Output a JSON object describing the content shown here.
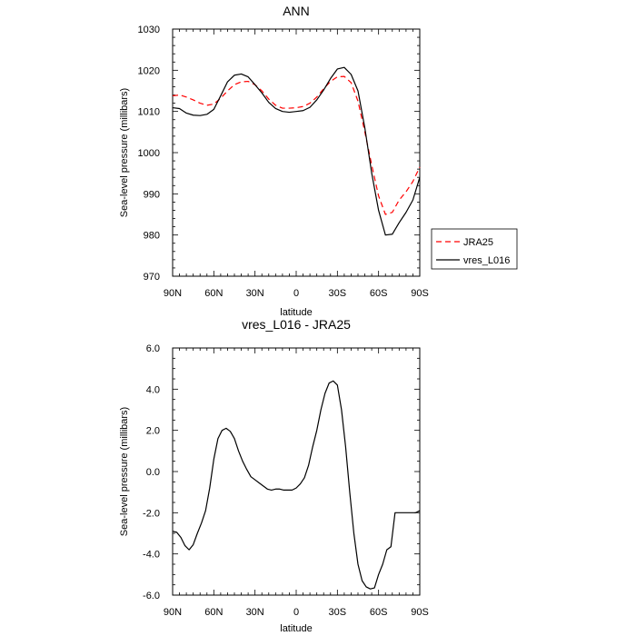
{
  "chart_data": [
    {
      "type": "line",
      "title": "ANN",
      "xlabel": "latitude",
      "ylabel": "Sea-level pressure (millibars)",
      "xticks": [
        "90N",
        "60N",
        "30N",
        "0",
        "30S",
        "60S",
        "90S"
      ],
      "xtick_values": [
        90,
        60,
        30,
        0,
        -30,
        -60,
        -90
      ],
      "yticks": [
        "970",
        "980",
        "990",
        "1000",
        "1010",
        "1020",
        "1030"
      ],
      "ytick_values": [
        970,
        980,
        990,
        1000,
        1010,
        1020,
        1030
      ],
      "xlim": [
        90,
        -90
      ],
      "ylim": [
        970,
        1030
      ],
      "legend_position": "right",
      "series": [
        {
          "name": "JRA25",
          "color": "#ff0000",
          "dash": "dashed",
          "x": [
            90,
            85,
            80,
            75,
            70,
            65,
            60,
            55,
            50,
            45,
            40,
            35,
            30,
            25,
            20,
            15,
            10,
            5,
            0,
            -5,
            -10,
            -15,
            -20,
            -25,
            -30,
            -35,
            -40,
            -45,
            -50,
            -55,
            -60,
            -65,
            -70,
            -75,
            -80,
            -85,
            -90
          ],
          "y": [
            1013.8,
            1014.0,
            1013.5,
            1012.8,
            1012.0,
            1011.5,
            1011.8,
            1013.2,
            1015.0,
            1016.5,
            1017.2,
            1017.3,
            1016.5,
            1015.0,
            1013.0,
            1011.5,
            1010.8,
            1010.8,
            1010.9,
            1011.2,
            1012.0,
            1013.5,
            1015.5,
            1017.3,
            1018.4,
            1018.5,
            1017.0,
            1012.5,
            1005.0,
            997.0,
            989.5,
            985.0,
            985.5,
            988.5,
            990.5,
            993.0,
            996.5
          ]
        },
        {
          "name": "vres_L016",
          "color": "#000000",
          "dash": "solid",
          "x": [
            90,
            85,
            80,
            75,
            70,
            65,
            60,
            55,
            50,
            45,
            40,
            35,
            30,
            25,
            20,
            15,
            10,
            5,
            0,
            -5,
            -10,
            -15,
            -20,
            -25,
            -30,
            -35,
            -40,
            -45,
            -50,
            -55,
            -60,
            -65,
            -70,
            -75,
            -80,
            -85,
            -90
          ],
          "y": [
            1010.9,
            1010.7,
            1009.6,
            1009.1,
            1009.0,
            1009.3,
            1010.5,
            1013.8,
            1017.2,
            1018.8,
            1019.1,
            1018.4,
            1016.5,
            1014.5,
            1012.2,
            1010.7,
            1010.0,
            1009.8,
            1010.0,
            1010.2,
            1011.0,
            1012.8,
            1015.2,
            1018.0,
            1020.3,
            1020.7,
            1019.0,
            1015.0,
            1006.0,
            995.0,
            986.0,
            980.0,
            980.2,
            983.0,
            985.5,
            988.5,
            994.0
          ]
        }
      ]
    },
    {
      "type": "line",
      "title": "vres_L016 - JRA25",
      "xlabel": "latitude",
      "ylabel": "Sea-level pressure (millibars)",
      "xticks": [
        "90N",
        "60N",
        "30N",
        "0",
        "30S",
        "60S",
        "90S"
      ],
      "xtick_values": [
        90,
        60,
        30,
        0,
        -30,
        -60,
        -90
      ],
      "yticks": [
        "-6.0",
        "-4.0",
        "-2.0",
        "0.0",
        "2.0",
        "4.0",
        "6.0"
      ],
      "ytick_values": [
        -6,
        -4,
        -2,
        0,
        2,
        4,
        6
      ],
      "xlim": [
        90,
        -90
      ],
      "ylim": [
        -6,
        6
      ],
      "series": [
        {
          "color": "#000000",
          "dash": "solid",
          "x": [
            90,
            87,
            84,
            81,
            78,
            75,
            72,
            69,
            66,
            63,
            60,
            57,
            54,
            51,
            48,
            45,
            42,
            39,
            36,
            33,
            30,
            27,
            24,
            21,
            18,
            15,
            12,
            9,
            6,
            3,
            0,
            -3,
            -6,
            -9,
            -12,
            -15,
            -18,
            -21,
            -24,
            -27,
            -30,
            -33,
            -36,
            -39,
            -42,
            -45,
            -48,
            -51,
            -54,
            -57,
            -60,
            -63,
            -66,
            -69,
            -72,
            -75,
            -78,
            -81,
            -84,
            -87,
            -90
          ],
          "y": [
            -2.9,
            -2.95,
            -3.2,
            -3.6,
            -3.8,
            -3.55,
            -3.0,
            -2.5,
            -1.9,
            -0.8,
            0.6,
            1.6,
            2.0,
            2.1,
            1.95,
            1.6,
            1.0,
            0.5,
            0.1,
            -0.25,
            -0.4,
            -0.55,
            -0.7,
            -0.85,
            -0.9,
            -0.85,
            -0.85,
            -0.9,
            -0.9,
            -0.9,
            -0.8,
            -0.6,
            -0.3,
            0.3,
            1.2,
            2.0,
            3.0,
            3.8,
            4.3,
            4.4,
            4.2,
            3.0,
            1.2,
            -1.0,
            -3.0,
            -4.5,
            -5.3,
            -5.6,
            -5.7,
            -5.65,
            -5.0,
            -4.5,
            -3.8,
            -3.65,
            -2.0,
            -2.0,
            -2.0,
            -2.0,
            -2.0,
            -2.0,
            -1.9
          ]
        }
      ]
    }
  ],
  "legend": {
    "items": [
      {
        "name": "JRA25"
      },
      {
        "name": "vres_L016"
      }
    ]
  }
}
